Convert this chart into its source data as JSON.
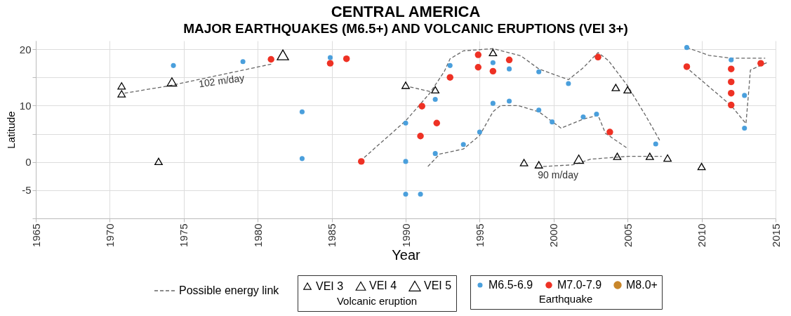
{
  "chart_data": {
    "type": "scatter",
    "title": "CENTRAL AMERICA",
    "subtitle": "MAJOR EARTHQUAKES (M6.5+) AND VOLCANIC ERUPTIONS (VEI 3+)",
    "xlabel": "Year",
    "ylabel": "Latitude",
    "xlim": [
      1965,
      2015
    ],
    "xticks": [
      1965,
      1970,
      1975,
      1980,
      1985,
      1990,
      1995,
      2000,
      2005,
      2010,
      2015
    ],
    "ylim": [
      -10,
      21.5
    ],
    "yticks": [
      {
        "value": -10,
        "label": null
      },
      -5,
      0,
      {
        "value": 5,
        "label": null
      },
      10,
      {
        "value": 15,
        "label": null
      },
      20
    ],
    "grid": true,
    "legend": "bottom",
    "annotations": [
      "Volcanic eruption",
      "Earthquake",
      {
        "text": "102 m/day",
        "x": 1977.5,
        "y": 15.4
      },
      {
        "text": "90 m/day",
        "x": 2000.3,
        "y": -0.65
      }
    ],
    "series": [
      {
        "type": "line",
        "name": "Possible energy link",
        "color": "#666666",
        "line_style": "dashed",
        "x": [
          1971,
          1974,
          1981
        ],
        "values": [
          12.2,
          13.5,
          17.4
        ]
      },
      {
        "type": "line",
        "color": "#666666",
        "line_style": "dashed",
        "x": [
          1999.3,
          2001.3,
          2002.5,
          2004,
          2005,
          2006.1,
          2007.3
        ],
        "values": [
          -0.8,
          -0.5,
          0.5,
          0.8,
          1.0,
          1.0,
          1.0
        ]
      },
      {
        "type": "line",
        "color": "#666666",
        "line_style": "dashed",
        "x": [
          1990.3,
          1991.8
        ],
        "values": [
          13.3,
          12.4
        ]
      },
      {
        "type": "line",
        "color": "#666666",
        "line_style": "dashed",
        "x": [
          1987.2,
          1990,
          1991.6,
          1992.6,
          1993,
          1993.9,
          1995.9,
          1997.8,
          1999,
          2001,
          2002,
          2003,
          2003.7,
          2005,
          2006.2,
          2007.2
        ],
        "values": [
          0.8,
          7.3,
          12.1,
          16,
          18.3,
          19.7,
          20.1,
          18.8,
          16.5,
          14.6,
          16.7,
          19.4,
          18,
          13.5,
          8.3,
          3.7
        ]
      },
      {
        "type": "line",
        "color": "#666666",
        "line_style": "dashed",
        "x": [
          1991.5,
          1992.3,
          1993.9,
          1995,
          1995.9,
          1996.4,
          1997.6,
          1999,
          2000.5,
          2002,
          2003,
          2003.5,
          2005
        ],
        "values": [
          -0.8,
          1.4,
          2.3,
          4.7,
          8.9,
          10,
          10,
          8.9,
          6,
          7.6,
          8.3,
          5.1,
          2.4
        ]
      },
      {
        "type": "line",
        "color": "#666666",
        "line_style": "dashed",
        "x": [
          2009,
          2010.5,
          2012,
          2014.3
        ],
        "values": [
          20.3,
          18.9,
          18.4,
          18.4
        ]
      },
      {
        "type": "line",
        "color": "#666666",
        "line_style": "dashed",
        "x": [
          2014.4,
          2013.3,
          2013.2,
          2013.0,
          2012,
          2009
        ],
        "values": [
          17.6,
          16.3,
          13,
          6.8,
          10,
          16.7
        ]
      },
      {
        "type": "scatter",
        "name": "VEI 3",
        "color": "#000000",
        "marker": "triangle",
        "x": [
          1970.8,
          1970.8,
          1973.3,
          1990.0,
          1992.0,
          1995.9,
          1998.0,
          1999.0,
          2004.2,
          2005.0,
          2004.3,
          2006.5,
          2007.7,
          2010.0
        ],
        "values": [
          13.5,
          12.1,
          0.1,
          13.6,
          12.8,
          19.4,
          -0.1,
          -0.5,
          13.2,
          12.8,
          1.0,
          1.0,
          0.7,
          -0.8
        ]
      },
      {
        "type": "scatter",
        "name": "VEI 4",
        "color": "#000000",
        "marker": "triangle",
        "x": [
          1974.2,
          2001.7
        ],
        "values": [
          14.2,
          0.5
        ]
      },
      {
        "type": "scatter",
        "name": "VEI 5",
        "color": "#000000",
        "marker": "triangle",
        "x": [
          1981.7
        ],
        "values": [
          19
        ]
      },
      {
        "type": "scatter",
        "name": "M6.5-6.9",
        "color": "#4a9fdc",
        "marker": "circle",
        "x": [
          1974.3,
          1979.0,
          1983.0,
          1983.0,
          1984.9,
          1990.0,
          1990.0,
          1990.0,
          1991.0,
          1992.0,
          1992.0,
          1993.0,
          1993.9,
          1995.0,
          1995.9,
          1997.0,
          1995.9,
          1997.0,
          1999.0,
          1999.0,
          2001.0,
          1999.9,
          2002.0,
          2002.9,
          2006.9,
          2009.0,
          2012.0,
          2012.9,
          2012.9
        ],
        "values": [
          17.1,
          17.8,
          8.9,
          0.6,
          18.5,
          6.9,
          0.1,
          -5.7,
          -5.7,
          11.1,
          1.5,
          17.1,
          3.1,
          5.3,
          10.4,
          10.8,
          17.6,
          16.5,
          16.0,
          9.2,
          13.9,
          7.1,
          8.0,
          8.5,
          3.2,
          20.3,
          18.1,
          11.8,
          6.0
        ]
      },
      {
        "type": "scatter",
        "name": "M7.0-7.9",
        "color": "#ee3124",
        "marker": "circle",
        "x": [
          1980.9,
          1984.9,
          1986.0,
          1987.0,
          1991.1,
          1992.1,
          1991.0,
          1993.0,
          1994.9,
          1994.9,
          1995.9,
          1997.0,
          2003.0,
          2003.8,
          2009.0,
          2012.0,
          2012.0,
          2012.0,
          2012.0,
          2014.0
        ],
        "values": [
          18.2,
          17.5,
          18.3,
          0.1,
          9.9,
          6.9,
          4.6,
          15.0,
          19.0,
          16.8,
          16.1,
          18.1,
          18.6,
          5.3,
          16.9,
          16.5,
          14.2,
          12.2,
          10.1,
          17.5
        ]
      },
      {
        "type": "scatter",
        "name": "M8.0+",
        "color": "#c8862a",
        "marker": "circle"
      }
    ]
  }
}
